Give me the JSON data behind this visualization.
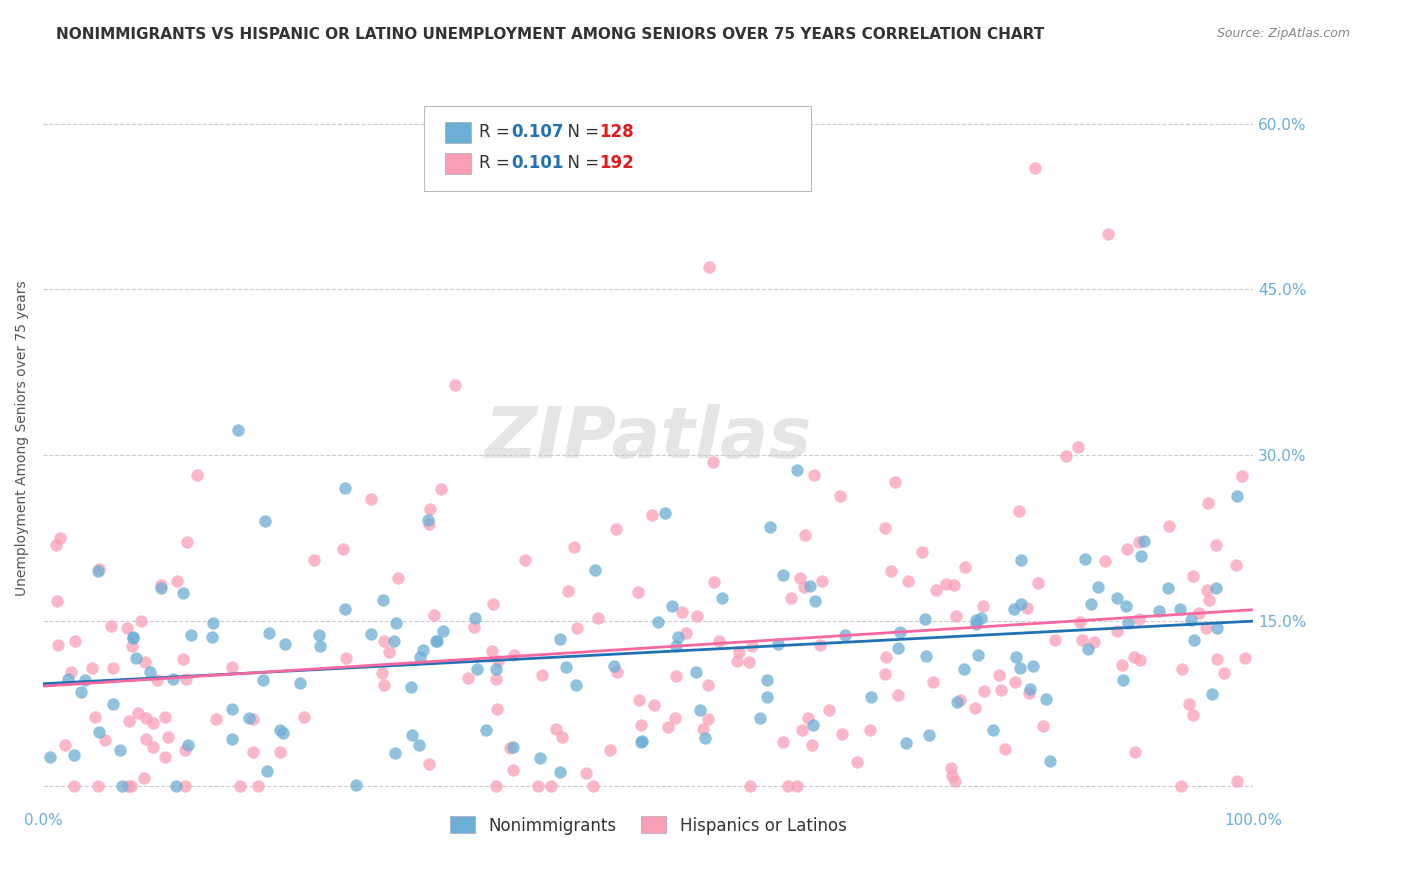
{
  "title": "NONIMMIGRANTS VS HISPANIC OR LATINO UNEMPLOYMENT AMONG SENIORS OVER 75 YEARS CORRELATION CHART",
  "source": "Source: ZipAtlas.com",
  "ylabel": "Unemployment Among Seniors over 75 years",
  "xlabel_ticks": [
    "0.0%",
    "100.0%"
  ],
  "ytick_labels": [
    "15.0%",
    "30.0%",
    "45.0%",
    "60.0%"
  ],
  "ytick_values": [
    0.15,
    0.3,
    0.45,
    0.6
  ],
  "xlim": [
    0.0,
    1.0
  ],
  "ylim": [
    -0.02,
    0.65
  ],
  "blue_R": 0.107,
  "blue_N": 128,
  "pink_R": 0.101,
  "pink_N": 192,
  "blue_color": "#6baed6",
  "pink_color": "#fa9fb5",
  "blue_line_color": "#2171b5",
  "pink_line_color": "#f768a1",
  "watermark": "ZIPatlas",
  "background_color": "#ffffff",
  "grid_color": "#cccccc",
  "title_color": "#333333",
  "axis_label_color": "#555555",
  "tick_label_color": "#6baed6",
  "legend_R_color": "#2171b5",
  "legend_N_color": "#e31a1c"
}
